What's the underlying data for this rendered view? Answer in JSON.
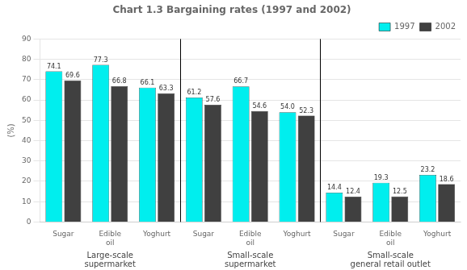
{
  "chart_data": {
    "type": "bar",
    "title": "Chart 1.3 Bargaining rates (1997 and 2002)",
    "ylabel": "(%)",
    "categories": [
      "Sugar",
      "Edible\noil",
      "Yoghurt",
      "Sugar",
      "Edible\noil",
      "Yoghurt",
      "Sugar",
      "Edible\noil",
      "Yoghurt"
    ],
    "group_labels": [
      "Large-scale\nsupermarket",
      "Small-scale\nsupermarket",
      "Small-scale\ngeneral retail outlet"
    ],
    "series": [
      {
        "name": "1997",
        "color": "#00EEEE",
        "values": [
          74.1,
          77.3,
          66.1,
          61.2,
          66.7,
          54.0,
          14.4,
          19.3,
          23.2
        ],
        "value_labels": [
          "74.1",
          "77.3",
          "66.1",
          "61.2",
          "66.7",
          "54.0",
          "14.4",
          "19.3",
          "23.2"
        ]
      },
      {
        "name": "2002",
        "color": "#404040",
        "values": [
          69.6,
          66.8,
          63.3,
          57.6,
          54.6,
          52.3,
          12.4,
          12.5,
          18.6
        ],
        "value_labels": [
          "69.6",
          "66.8",
          "63.3",
          "57.6",
          "54.6",
          "52.3",
          "12.4",
          "12.5",
          "18.6"
        ]
      }
    ],
    "ylim": [
      0,
      90
    ],
    "yticks": [
      0,
      10,
      20,
      30,
      40,
      50,
      60,
      70,
      80,
      90
    ],
    "grid": true,
    "legend": "upper right",
    "data_labels": true
  }
}
